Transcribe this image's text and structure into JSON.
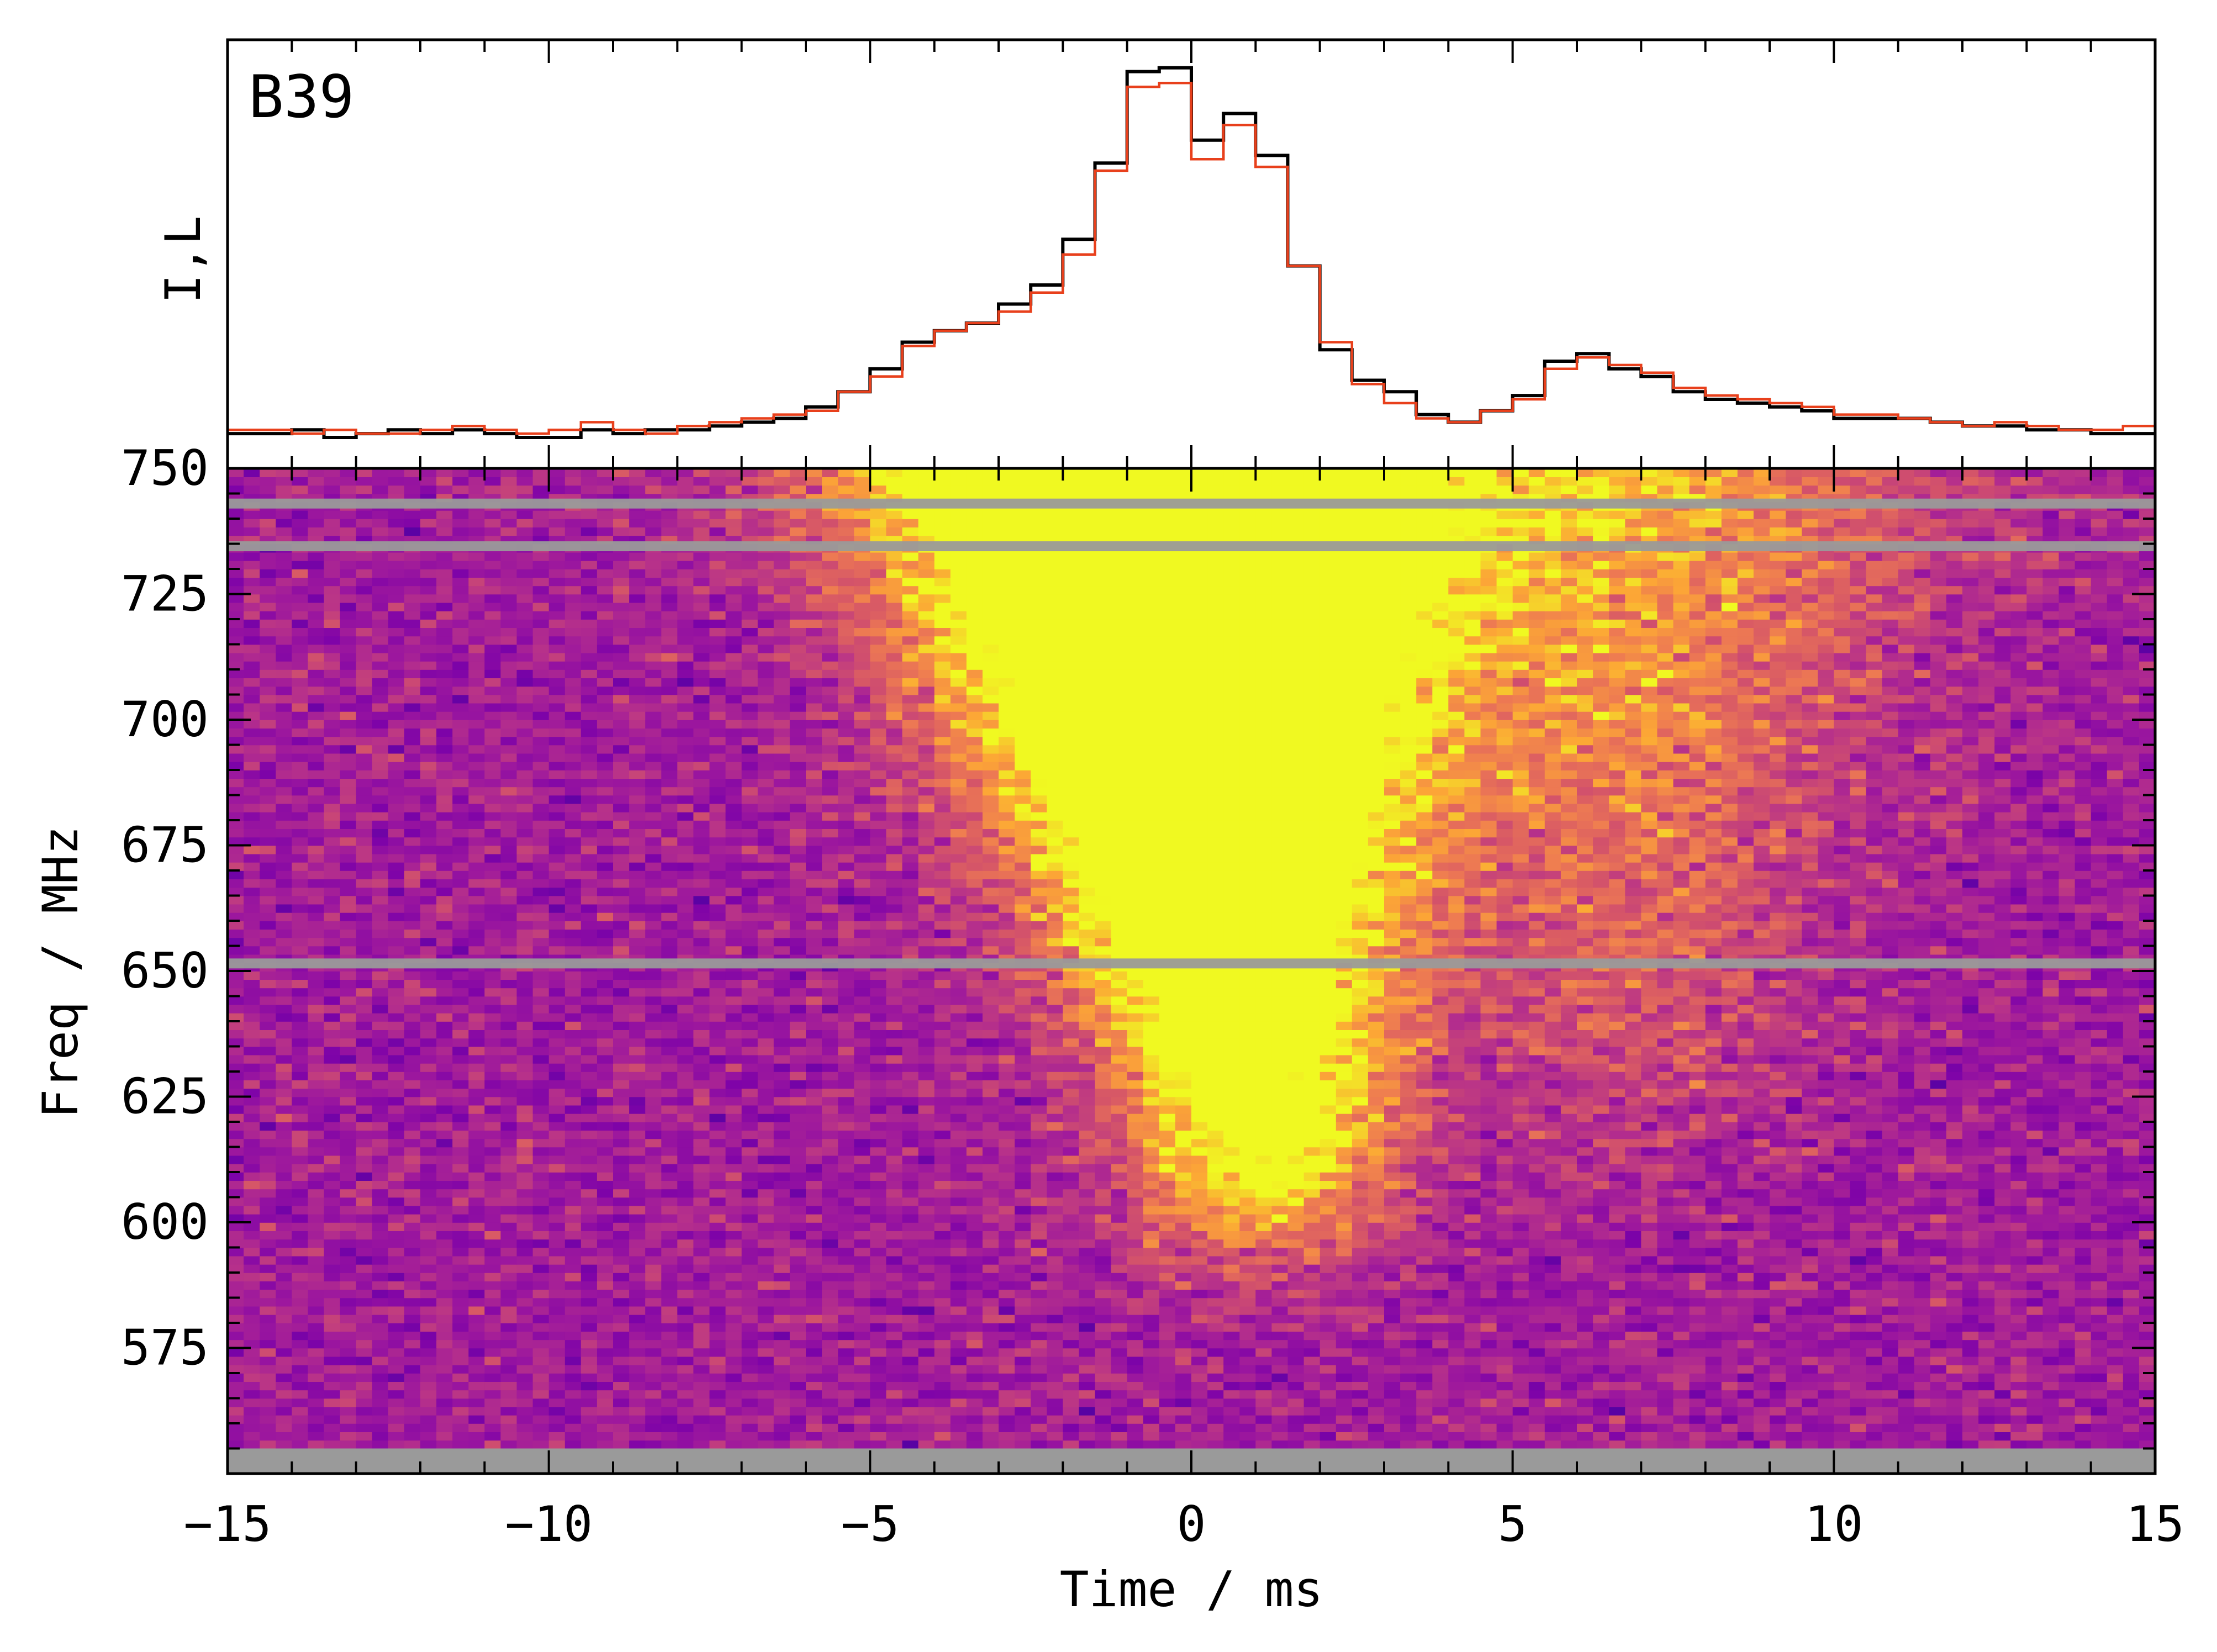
{
  "figure": {
    "panel_label": "B39"
  },
  "chart_data": [
    {
      "type": "line",
      "title": "",
      "xlabel": "",
      "ylabel": "I,L",
      "xlim": [
        -15,
        15
      ],
      "step": true,
      "series": [
        {
          "color": "#000000",
          "x": [
            -15,
            -14.5,
            -14,
            -13.5,
            -13,
            -12.5,
            -12,
            -11.5,
            -11,
            -10.5,
            -10,
            -9.5,
            -9,
            -8.5,
            -8,
            -7.5,
            -7,
            -6.5,
            -6,
            -5.5,
            -5,
            -4.5,
            -4,
            -3.5,
            -3,
            -2.5,
            -2,
            -1.5,
            -1,
            -0.5,
            0,
            0.5,
            1,
            1.5,
            2,
            2.5,
            3,
            3.5,
            4,
            4.5,
            5,
            5.5,
            6,
            6.5,
            7,
            7.5,
            8,
            8.5,
            9,
            9.5,
            10,
            10.5,
            11,
            11.5,
            12,
            12.5,
            13,
            13.5,
            14,
            14.5
          ],
          "y": [
            0.01,
            0.01,
            0.02,
            0.0,
            0.01,
            0.02,
            0.01,
            0.02,
            0.01,
            0.0,
            0.0,
            0.02,
            0.01,
            0.02,
            0.02,
            0.03,
            0.04,
            0.05,
            0.08,
            0.12,
            0.18,
            0.25,
            0.28,
            0.3,
            0.35,
            0.4,
            0.52,
            0.72,
            0.96,
            0.97,
            0.78,
            0.85,
            0.74,
            0.45,
            0.23,
            0.15,
            0.12,
            0.06,
            0.04,
            0.07,
            0.11,
            0.2,
            0.22,
            0.18,
            0.16,
            0.12,
            0.1,
            0.09,
            0.08,
            0.07,
            0.05,
            0.05,
            0.05,
            0.04,
            0.03,
            0.03,
            0.02,
            0.02,
            0.01,
            0.01
          ]
        },
        {
          "color": "#e8401c",
          "x": [
            -15,
            -14.5,
            -14,
            -13.5,
            -13,
            -12.5,
            -12,
            -11.5,
            -11,
            -10.5,
            -10,
            -9.5,
            -9,
            -8.5,
            -8,
            -7.5,
            -7,
            -6.5,
            -6,
            -5.5,
            -5,
            -4.5,
            -4,
            -3.5,
            -3,
            -2.5,
            -2,
            -1.5,
            -1,
            -0.5,
            0,
            0.5,
            1,
            1.5,
            2,
            2.5,
            3,
            3.5,
            4,
            4.5,
            5,
            5.5,
            6,
            6.5,
            7,
            7.5,
            8,
            8.5,
            9,
            9.5,
            10,
            10.5,
            11,
            11.5,
            12,
            12.5,
            13,
            13.5,
            14,
            14.5
          ],
          "y": [
            0.02,
            0.02,
            0.01,
            0.02,
            0.01,
            0.01,
            0.02,
            0.03,
            0.02,
            0.01,
            0.02,
            0.04,
            0.02,
            0.01,
            0.03,
            0.04,
            0.05,
            0.06,
            0.07,
            0.12,
            0.16,
            0.24,
            0.28,
            0.3,
            0.33,
            0.38,
            0.48,
            0.7,
            0.92,
            0.93,
            0.73,
            0.82,
            0.71,
            0.45,
            0.25,
            0.14,
            0.09,
            0.05,
            0.04,
            0.07,
            0.1,
            0.18,
            0.21,
            0.19,
            0.17,
            0.13,
            0.11,
            0.1,
            0.09,
            0.08,
            0.06,
            0.06,
            0.05,
            0.04,
            0.03,
            0.04,
            0.03,
            0.02,
            0.02,
            0.03
          ]
        }
      ]
    },
    {
      "type": "heatmap",
      "title": "",
      "xlabel": "Time / ms",
      "ylabel": "Freq / MHz",
      "xlim": [
        -15,
        15
      ],
      "ylim": [
        550,
        750
      ],
      "x_ticks": [
        "−15",
        "−10",
        "−5",
        "0",
        "5",
        "10",
        "15"
      ],
      "y_ticks": [
        "575",
        "600",
        "625",
        "650",
        "675",
        "700",
        "725",
        "750"
      ],
      "colormap": "plasma",
      "masked_color": "#9a9a9a",
      "masked_freq_MHz": [
        651.5,
        734.5,
        743
      ],
      "masked_below_MHz": 555,
      "burst_components": [
        {
          "t_center_ms": -0.7,
          "t_width_ms": 2.7,
          "f_low_MHz": 620,
          "f_high_MHz": 750,
          "brightness": "saturated"
        },
        {
          "t_center_ms": 7.0,
          "t_width_ms": 3.0,
          "f_low_MHz": 640,
          "f_high_MHz": 740,
          "brightness": "moderate"
        }
      ]
    }
  ]
}
